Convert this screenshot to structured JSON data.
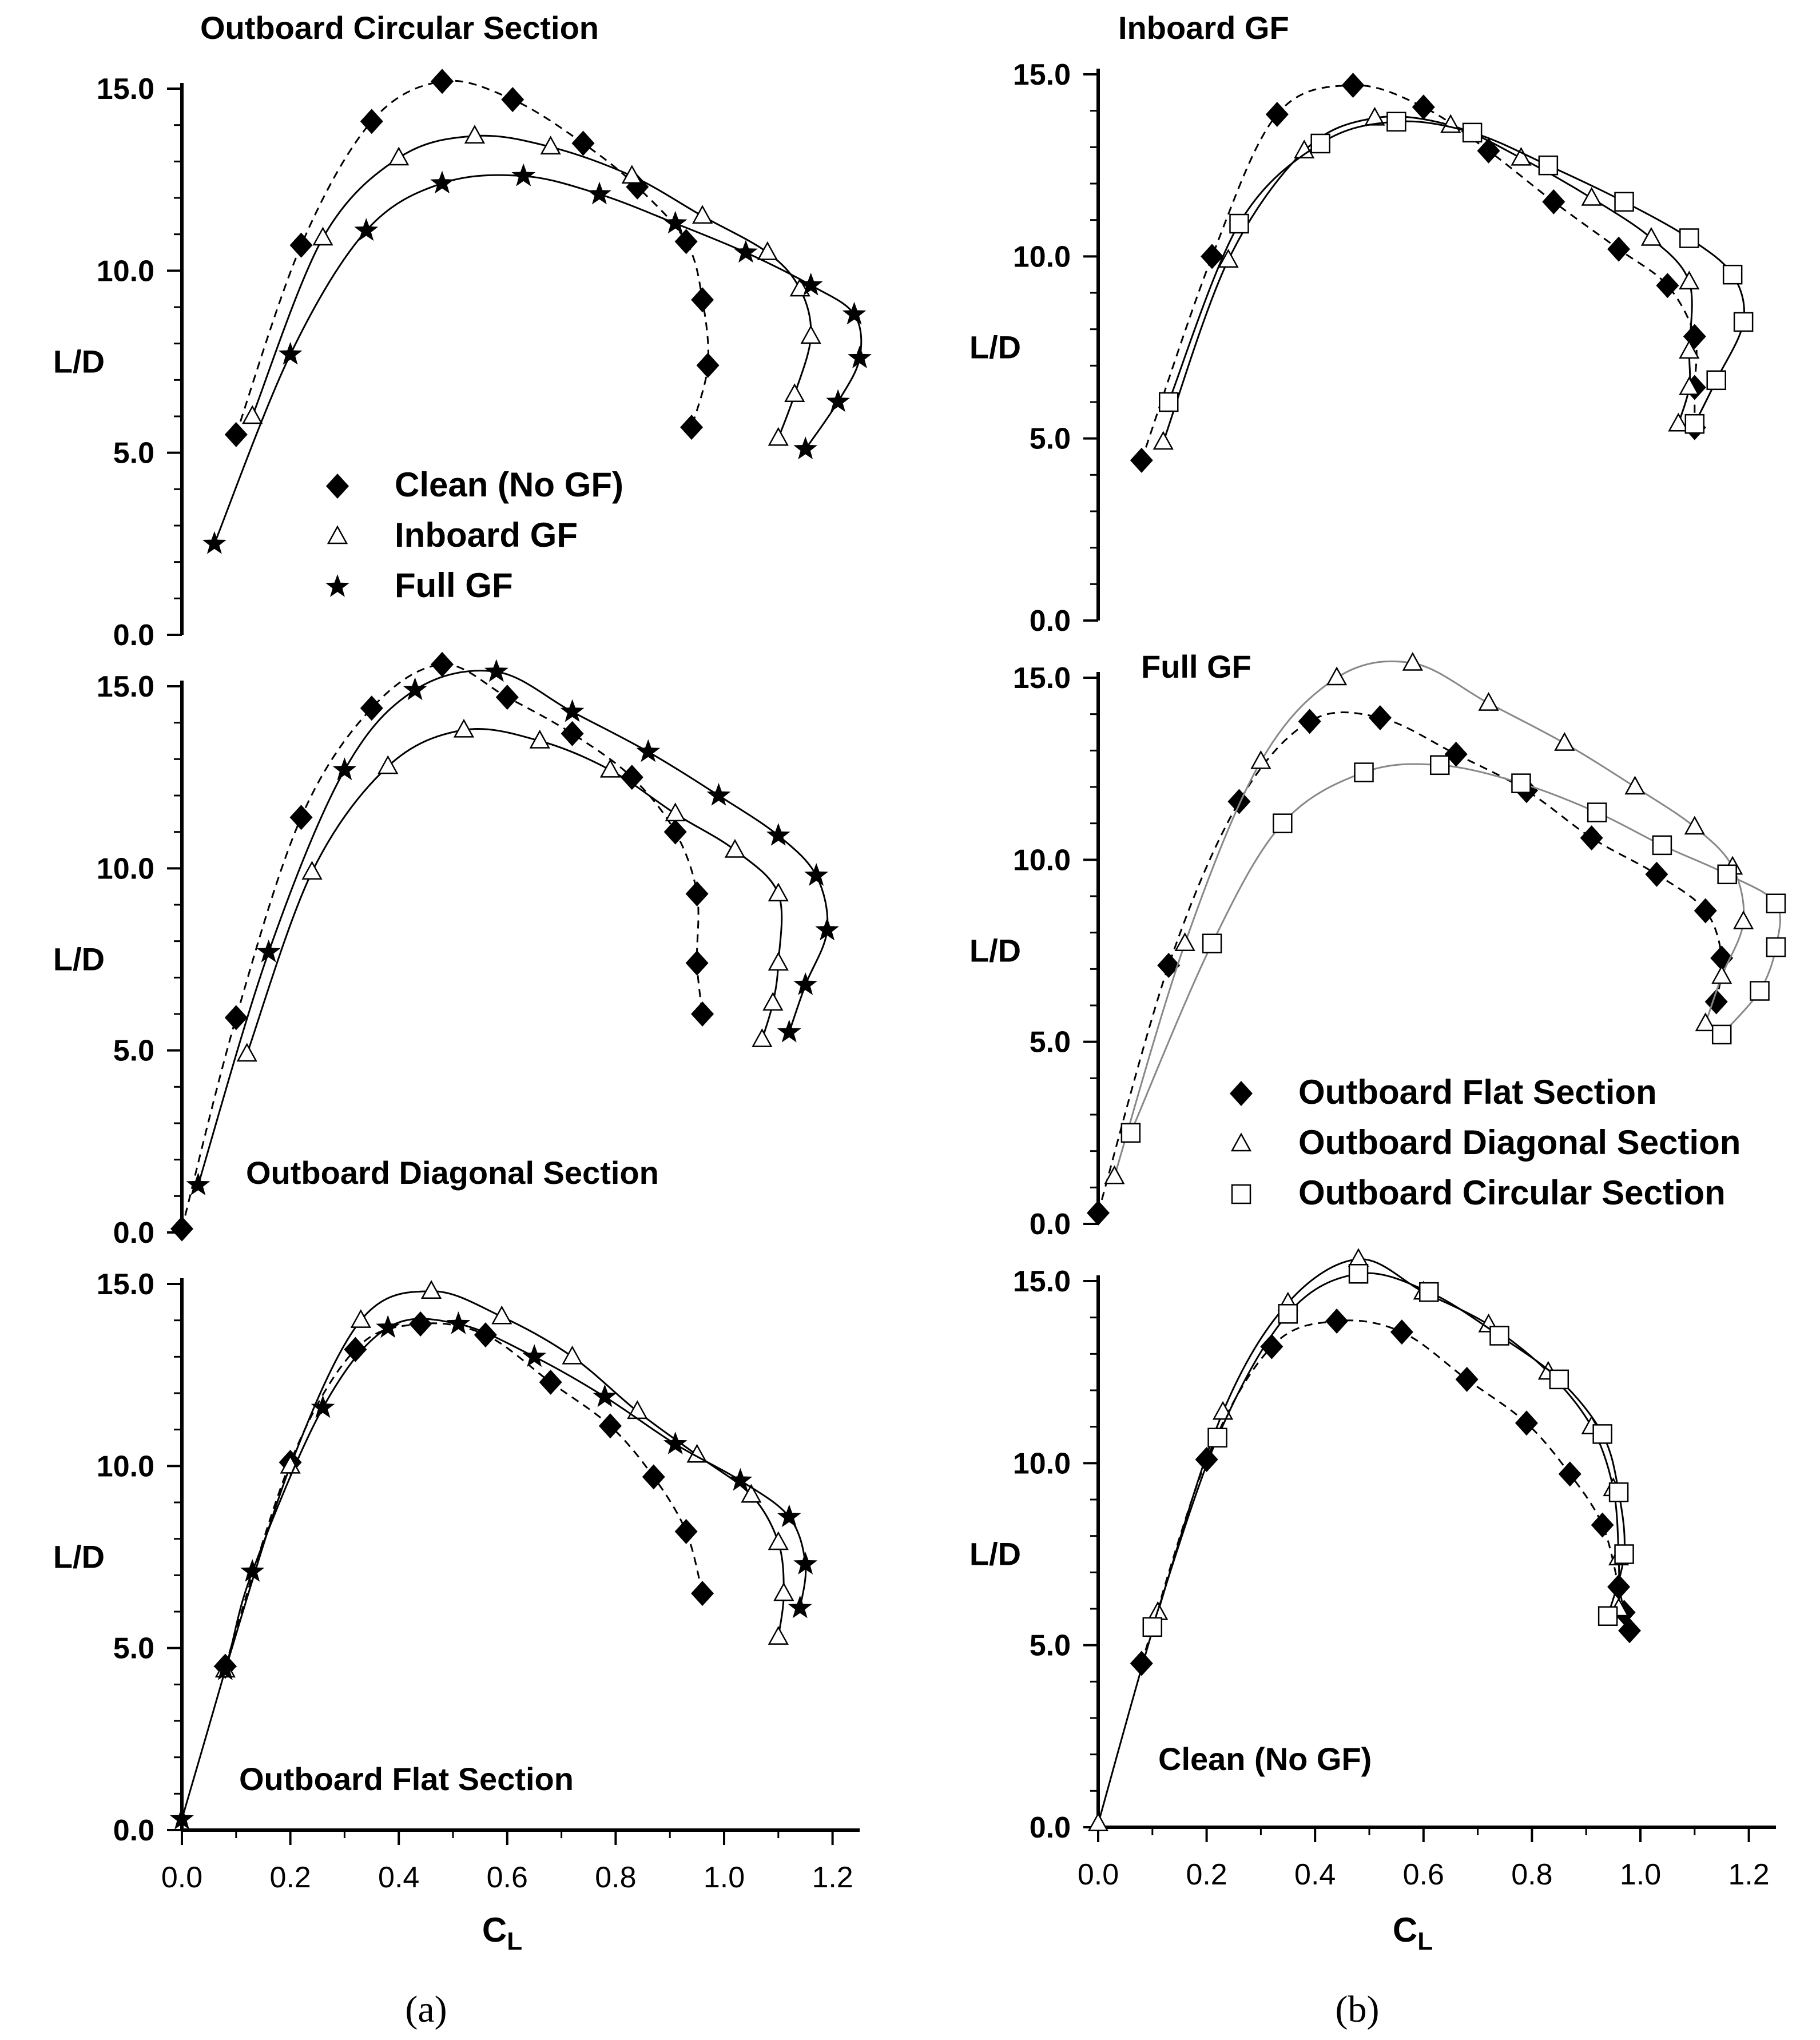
{
  "figure": {
    "captions": [
      "(a)",
      "(b)"
    ],
    "y_label": "L/D",
    "x_label_main": "C",
    "x_label_sub": "L"
  },
  "chart_data": [
    {
      "type": "line",
      "title": "Outboard Circular Section",
      "xlabel": "CL",
      "ylabel": "L/D",
      "xlim": [
        0,
        1.25
      ],
      "ylim": [
        0,
        15
      ],
      "xticks": [
        "0.0",
        "0.2",
        "0.4",
        "0.6",
        "0.8",
        "1.0",
        "1.2"
      ],
      "yticks": [
        "0.0",
        "5.0",
        "10.0",
        "15.0"
      ],
      "legend": {
        "position": "center",
        "entries": [
          "Clean (No GF)",
          "Inboard GF",
          "Full GF"
        ]
      },
      "series": [
        {
          "name": "Clean (No GF)",
          "marker": "diamond",
          "line": "dashed",
          "x": [
            0.1,
            0.22,
            0.35,
            0.48,
            0.61,
            0.74,
            0.84,
            0.93,
            0.96,
            0.97,
            0.94
          ],
          "y": [
            5.5,
            10.7,
            14.1,
            15.2,
            14.7,
            13.5,
            12.3,
            10.8,
            9.2,
            7.4,
            5.7
          ]
        },
        {
          "name": "Inboard GF",
          "marker": "triangle",
          "line": "solid",
          "x": [
            0.13,
            0.26,
            0.4,
            0.54,
            0.68,
            0.83,
            0.96,
            1.08,
            1.14,
            1.16,
            1.13,
            1.1
          ],
          "y": [
            6.0,
            10.9,
            13.1,
            13.7,
            13.4,
            12.6,
            11.5,
            10.5,
            9.5,
            8.2,
            6.6,
            5.4
          ]
        },
        {
          "name": "Full GF",
          "marker": "star",
          "line": "solid",
          "x": [
            0.06,
            0.2,
            0.34,
            0.48,
            0.63,
            0.77,
            0.91,
            1.04,
            1.16,
            1.24,
            1.25,
            1.21,
            1.15
          ],
          "y": [
            2.5,
            7.7,
            11.1,
            12.4,
            12.6,
            12.1,
            11.3,
            10.5,
            9.6,
            8.8,
            7.6,
            6.4,
            5.1
          ]
        }
      ]
    },
    {
      "type": "line",
      "title": "Outboard Diagonal Section",
      "xlabel": "CL",
      "ylabel": "L/D",
      "xlim": [
        0,
        1.25
      ],
      "ylim": [
        0,
        15
      ],
      "xticks": [
        "0.0",
        "0.2",
        "0.4",
        "0.6",
        "0.8",
        "1.0",
        "1.2"
      ],
      "yticks": [
        "0.0",
        "5.0",
        "10.0",
        "15.0"
      ],
      "series": [
        {
          "name": "Clean (No GF)",
          "marker": "diamond",
          "line": "dashed",
          "x": [
            0.0,
            0.1,
            0.22,
            0.35,
            0.48,
            0.6,
            0.72,
            0.83,
            0.91,
            0.95,
            0.95,
            0.96
          ],
          "y": [
            0.1,
            5.9,
            11.4,
            14.4,
            15.6,
            14.7,
            13.7,
            12.5,
            11.0,
            9.3,
            7.4,
            6.0
          ]
        },
        {
          "name": "Inboard GF",
          "marker": "triangle",
          "line": "solid",
          "x": [
            0.12,
            0.24,
            0.38,
            0.52,
            0.66,
            0.79,
            0.91,
            1.02,
            1.1,
            1.1,
            1.09,
            1.07
          ],
          "y": [
            4.9,
            9.9,
            12.8,
            13.8,
            13.5,
            12.7,
            11.5,
            10.5,
            9.3,
            7.4,
            6.3,
            5.3
          ]
        },
        {
          "name": "Full GF",
          "marker": "star",
          "line": "solid",
          "x": [
            0.03,
            0.16,
            0.3,
            0.43,
            0.58,
            0.72,
            0.86,
            0.99,
            1.1,
            1.17,
            1.19,
            1.15,
            1.12
          ],
          "y": [
            1.3,
            7.7,
            12.7,
            14.9,
            15.4,
            14.3,
            13.2,
            12.0,
            10.9,
            9.8,
            8.3,
            6.8,
            5.5
          ]
        }
      ]
    },
    {
      "type": "line",
      "title": "Outboard Flat Section",
      "xlabel": "CL",
      "ylabel": "L/D",
      "xlim": [
        0,
        1.25
      ],
      "ylim": [
        0,
        15
      ],
      "xticks": [
        "0.0",
        "0.2",
        "0.4",
        "0.6",
        "0.8",
        "1.0",
        "1.2"
      ],
      "yticks": [
        "0.0",
        "5.0",
        "10.0",
        "15.0"
      ],
      "series": [
        {
          "name": "Clean (No GF)",
          "marker": "diamond",
          "line": "dashed",
          "x": [
            0.08,
            0.2,
            0.32,
            0.44,
            0.56,
            0.68,
            0.79,
            0.87,
            0.93,
            0.96
          ],
          "y": [
            4.5,
            10.1,
            13.2,
            13.9,
            13.6,
            12.3,
            11.1,
            9.7,
            8.2,
            6.5
          ]
        },
        {
          "name": "Inboard GF",
          "marker": "triangle",
          "line": "solid",
          "x": [
            0.08,
            0.2,
            0.33,
            0.46,
            0.59,
            0.72,
            0.84,
            0.95,
            1.05,
            1.1,
            1.11,
            1.1
          ],
          "y": [
            4.4,
            10.0,
            14.0,
            14.8,
            14.1,
            13.0,
            11.5,
            10.3,
            9.2,
            7.9,
            6.5,
            5.3
          ]
        },
        {
          "name": "Full GF",
          "marker": "star",
          "line": "solid",
          "x": [
            0.0,
            0.08,
            0.13,
            0.26,
            0.38,
            0.51,
            0.65,
            0.78,
            0.91,
            1.03,
            1.12,
            1.15,
            1.14
          ],
          "y": [
            0.3,
            4.4,
            7.1,
            11.6,
            13.8,
            13.9,
            13.0,
            11.9,
            10.6,
            9.6,
            8.6,
            7.3,
            6.1
          ]
        }
      ]
    },
    {
      "type": "line",
      "title": "Inboard GF",
      "xlabel": "CL",
      "ylabel": "L/D",
      "xlim": [
        0,
        1.25
      ],
      "ylim": [
        0,
        15
      ],
      "xticks": [
        "0.0",
        "0.2",
        "0.4",
        "0.6",
        "0.8",
        "1.0",
        "1.2"
      ],
      "yticks": [
        "0.0",
        "5.0",
        "10.0",
        "15.0"
      ],
      "series": [
        {
          "name": "Outboard Flat Section",
          "marker": "diamond",
          "line": "dashed",
          "x": [
            0.08,
            0.21,
            0.33,
            0.47,
            0.6,
            0.72,
            0.84,
            0.96,
            1.05,
            1.1,
            1.1,
            1.1
          ],
          "y": [
            4.4,
            10.0,
            13.9,
            14.7,
            14.1,
            12.9,
            11.5,
            10.2,
            9.2,
            7.8,
            6.4,
            5.3
          ]
        },
        {
          "name": "Outboard Diagonal Section",
          "marker": "triangle",
          "line": "solid",
          "x": [
            0.12,
            0.24,
            0.38,
            0.51,
            0.65,
            0.78,
            0.91,
            1.02,
            1.09,
            1.09,
            1.09,
            1.07
          ],
          "y": [
            4.9,
            9.9,
            12.9,
            13.8,
            13.6,
            12.7,
            11.6,
            10.5,
            9.3,
            7.4,
            6.4,
            5.4
          ]
        },
        {
          "name": "Outboard Circular Section",
          "marker": "square",
          "line": "solid",
          "x": [
            0.13,
            0.26,
            0.41,
            0.55,
            0.69,
            0.83,
            0.97,
            1.09,
            1.17,
            1.19,
            1.14,
            1.1
          ],
          "y": [
            6.0,
            10.9,
            13.1,
            13.7,
            13.4,
            12.5,
            11.5,
            10.5,
            9.5,
            8.2,
            6.6,
            5.4
          ]
        }
      ]
    },
    {
      "type": "line",
      "title": "Full GF",
      "xlabel": "CL",
      "ylabel": "L/D",
      "xlim": [
        0,
        1.25
      ],
      "ylim": [
        0,
        15
      ],
      "xticks": [
        "0.0",
        "0.2",
        "0.4",
        "0.6",
        "0.8",
        "1.0",
        "1.2"
      ],
      "yticks": [
        "0.0",
        "5.0",
        "10.0",
        "15.0"
      ],
      "legend": {
        "position": "bottom-right",
        "entries": [
          "Outboard Flat Section",
          "Outboard Diagonal Section",
          "Outboard Circular Section"
        ]
      },
      "series": [
        {
          "name": "Outboard Flat Section",
          "marker": "diamond",
          "line": "dashed",
          "x": [
            0.0,
            0.13,
            0.26,
            0.39,
            0.52,
            0.66,
            0.79,
            0.91,
            1.03,
            1.12,
            1.15,
            1.14
          ],
          "y": [
            0.3,
            7.1,
            11.6,
            13.8,
            13.9,
            12.9,
            11.9,
            10.6,
            9.6,
            8.6,
            7.3,
            6.1
          ]
        },
        {
          "name": "Outboard Diagonal Section",
          "marker": "triangle",
          "line": "solid",
          "x": [
            0.03,
            0.16,
            0.3,
            0.44,
            0.58,
            0.72,
            0.86,
            0.99,
            1.1,
            1.17,
            1.19,
            1.15,
            1.12
          ],
          "y": [
            1.3,
            7.7,
            12.7,
            15.0,
            15.4,
            14.3,
            13.2,
            12.0,
            10.9,
            9.8,
            8.3,
            6.8,
            5.5
          ]
        },
        {
          "name": "Outboard Circular Section",
          "marker": "square",
          "line": "solid",
          "x": [
            0.06,
            0.21,
            0.34,
            0.49,
            0.63,
            0.78,
            0.92,
            1.04,
            1.16,
            1.25,
            1.25,
            1.22,
            1.15
          ],
          "y": [
            2.5,
            7.7,
            11.0,
            12.4,
            12.6,
            12.1,
            11.3,
            10.4,
            9.6,
            8.8,
            7.6,
            6.4,
            5.2
          ]
        }
      ]
    },
    {
      "type": "line",
      "title": "Clean (No GF)",
      "xlabel": "CL",
      "ylabel": "L/D",
      "xlim": [
        0,
        1.25
      ],
      "ylim": [
        0,
        15
      ],
      "xticks": [
        "0.0",
        "0.2",
        "0.4",
        "0.6",
        "0.8",
        "1.0",
        "1.2"
      ],
      "yticks": [
        "0.0",
        "5.0",
        "10.0",
        "15.0"
      ],
      "series": [
        {
          "name": "Outboard Flat Section",
          "marker": "diamond",
          "line": "dashed",
          "x": [
            0.08,
            0.2,
            0.32,
            0.44,
            0.56,
            0.68,
            0.79,
            0.87,
            0.93,
            0.96,
            0.97,
            0.98
          ],
          "y": [
            4.5,
            10.1,
            13.2,
            13.9,
            13.6,
            12.3,
            11.1,
            9.7,
            8.3,
            6.6,
            5.9,
            5.4
          ]
        },
        {
          "name": "Outboard Diagonal Section",
          "marker": "triangle",
          "line": "solid",
          "x": [
            0.0,
            0.11,
            0.23,
            0.35,
            0.48,
            0.6,
            0.72,
            0.83,
            0.91,
            0.95,
            0.96,
            0.96
          ],
          "y": [
            0.1,
            5.9,
            11.4,
            14.4,
            15.6,
            14.7,
            13.8,
            12.5,
            11.0,
            9.3,
            7.4,
            6.0
          ]
        },
        {
          "name": "Outboard Circular Section",
          "marker": "square",
          "line": "solid",
          "x": [
            0.1,
            0.22,
            0.35,
            0.48,
            0.61,
            0.74,
            0.85,
            0.93,
            0.96,
            0.97,
            0.94
          ],
          "y": [
            5.5,
            10.7,
            14.1,
            15.2,
            14.7,
            13.5,
            12.3,
            10.8,
            9.2,
            7.5,
            5.8
          ]
        }
      ]
    }
  ]
}
